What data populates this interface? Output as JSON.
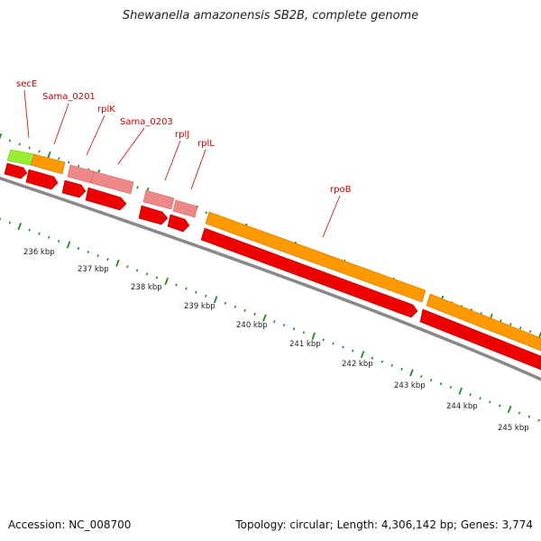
{
  "title": "Shewanella amazonensis SB2B, complete genome",
  "footer": {
    "accession": "Accession: NC_008700",
    "summary": "Topology: circular; Length: 4,306,142 bp; Genes: 3,774"
  },
  "colors": {
    "cds": "#ee0000",
    "gene_orange": "#ff9900",
    "gene_pink": "#ee8888",
    "gene_lime": "#99ee33",
    "label": "#cc0000",
    "tick": "#228822",
    "backbone": "#888888"
  },
  "gene_labels": [
    "secE",
    "Sama_0201",
    "rplK",
    "Sama_0203",
    "rplJ",
    "rplL",
    "rpoB"
  ],
  "scale_labels": [
    "236 kbp",
    "237 kbp",
    "238 kbp",
    "239 kbp",
    "240 kbp",
    "241 kbp",
    "242 kbp",
    "243 kbp",
    "244 kbp",
    "245 kbp"
  ]
}
